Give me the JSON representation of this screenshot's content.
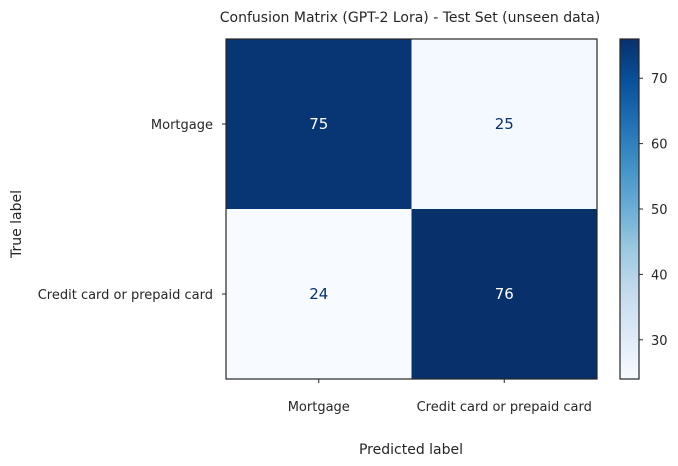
{
  "chart_data": {
    "type": "heatmap",
    "title": "Confusion Matrix (GPT-2 Lora) - Test Set (unseen data)",
    "xlabel": "Predicted label",
    "ylabel": "True label",
    "x_categories": [
      "Mortgage",
      "Credit card or prepaid card"
    ],
    "y_categories": [
      "Mortgage",
      "Credit card or prepaid card"
    ],
    "values": [
      [
        75,
        25
      ],
      [
        24,
        76
      ]
    ],
    "colormap": "Blues",
    "colorbar": {
      "min": 24,
      "max": 76,
      "ticks": [
        30,
        40,
        50,
        60,
        70
      ]
    },
    "grid": false
  },
  "colors": {
    "high": "#08306b",
    "low": "#f7fbff",
    "text_on_dark": "#ffffff",
    "text_on_light": "#08306b"
  }
}
